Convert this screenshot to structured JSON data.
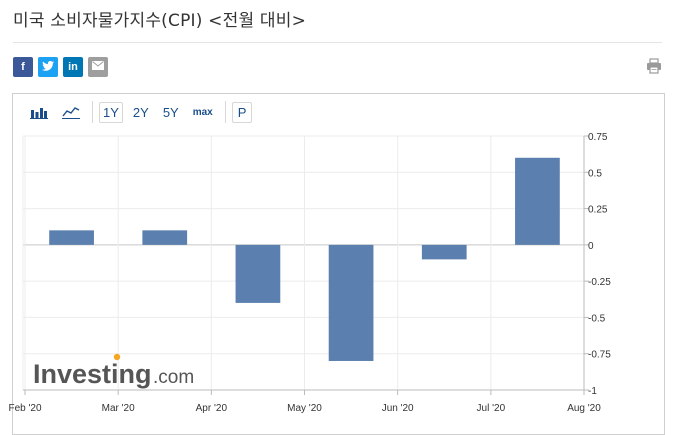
{
  "page": {
    "title": "미국 소비자물가지수(CPI) <전월 대비>"
  },
  "share": {
    "facebook": "f",
    "twitter": "t",
    "linkedin": "in",
    "email": "✉"
  },
  "toolbar": {
    "ranges": [
      "1Y",
      "2Y",
      "5Y",
      "max"
    ],
    "active_range": "1Y",
    "p_label": "P"
  },
  "watermark": {
    "brand": "Investing",
    "suffix": ".com"
  },
  "colors": {
    "bar": "#5b7faf",
    "facebook": "#3b5998",
    "twitter": "#1da1f2",
    "linkedin": "#0077b5",
    "email": "#9e9e9e",
    "toolbar_accent": "#1a4e8a"
  },
  "chart_data": {
    "type": "bar",
    "categories": [
      "Feb '20",
      "Mar '20",
      "Apr '20",
      "May '20",
      "Jun '20",
      "Jul '20",
      "Aug '20"
    ],
    "values": [
      0.1,
      0.1,
      -0.4,
      -0.8,
      -0.1,
      0.6,
      null
    ],
    "title": "",
    "xlabel": "",
    "ylabel": "",
    "ylim": [
      -1,
      0.75
    ],
    "yticks": [
      0.75,
      0.5,
      0.25,
      0,
      -0.25,
      -0.5,
      -0.75,
      -1
    ],
    "ytick_labels": [
      "0.75",
      "0.5",
      "0.25",
      "0",
      "-0.25",
      "-0.5",
      "-0.75",
      "-1"
    ],
    "grid": true,
    "y_axis_position": "right"
  }
}
